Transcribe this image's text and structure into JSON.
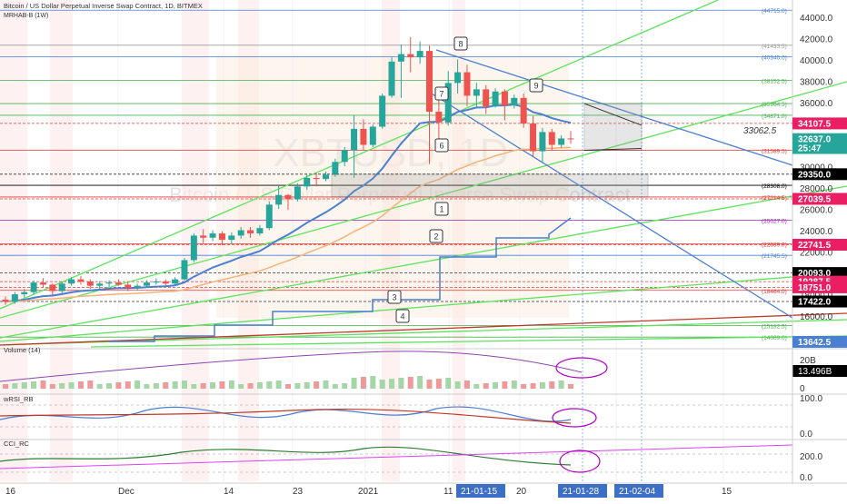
{
  "header": {
    "title": "Bitcoin / US Dollar Perpetual Inverse Swap Contract, 1D, BITMEX",
    "indicator": "MRHAB-B (1W)"
  },
  "watermark": {
    "symbol": "XBTUSD, 1D",
    "description": "Bitcoin / US Dollar Perpetual Inverse Swap Contract"
  },
  "price_axis": {
    "ticks": [
      {
        "label": "44000.0",
        "v": 44000
      },
      {
        "label": "42000.0",
        "v": 42000
      },
      {
        "label": "40000.0",
        "v": 40000
      },
      {
        "label": "38000.0",
        "v": 38000
      },
      {
        "label": "36000.0",
        "v": 36000
      },
      {
        "label": "34000.0",
        "v": 34000
      },
      {
        "label": "32000.0",
        "v": 32000
      },
      {
        "label": "30000.0",
        "v": 30000
      },
      {
        "label": "28000.0",
        "v": 28000
      },
      {
        "label": "26000.0",
        "v": 26000
      },
      {
        "label": "24000.0",
        "v": 24000
      },
      {
        "label": "22000.0",
        "v": 22000
      },
      {
        "label": "20000.0",
        "v": 20000
      },
      {
        "label": "18000.0",
        "v": 18000
      },
      {
        "label": "16000.0",
        "v": 16000
      }
    ],
    "badges": [
      {
        "label": "34107.5",
        "v": 34107.5,
        "color": "#e91e63"
      },
      {
        "label": "32637.0",
        "v": 32637.0,
        "color": "#26a69a"
      },
      {
        "label": "25:47",
        "v": 31800,
        "color": "#26a69a"
      },
      {
        "label": "29350.0",
        "v": 29350.0,
        "color": "#000000"
      },
      {
        "label": "27039.5",
        "v": 27039.5,
        "color": "#e91e63"
      },
      {
        "label": "22741.5",
        "v": 22741.5,
        "color": "#e91e63"
      },
      {
        "label": "20093.0",
        "v": 20093.0,
        "color": "#000000"
      },
      {
        "label": "19287.5",
        "v": 19287.5,
        "color": "#e91e63"
      },
      {
        "label": "18751.0",
        "v": 18751.0,
        "color": "#e91e63"
      },
      {
        "label": "17422.0",
        "v": 17422.0,
        "color": "#000000"
      },
      {
        "label": "13642.5",
        "v": 13642.5,
        "color": "#4a7fd1"
      }
    ]
  },
  "level_labels": [
    {
      "label": "(44715.0)",
      "v": 44715.0
    },
    {
      "label": "(41433.5)",
      "v": 41433.5
    },
    {
      "label": "(40340.0)",
      "v": 40340.0
    },
    {
      "label": "(38152.5)",
      "v": 38152.5
    },
    {
      "label": "(35964.5)",
      "v": 35964.5
    },
    {
      "label": "(34871.0)",
      "v": 34871.0
    },
    {
      "label": "(31589.5)",
      "v": 31589.5
    },
    {
      "label": "(28308.0)",
      "v": 28308.0
    },
    {
      "label": "(27214.5)",
      "v": 27214.5
    },
    {
      "label": "(25027.0)",
      "v": 25027.0
    },
    {
      "label": "(22839.0)",
      "v": 22839.0
    },
    {
      "label": "(21745.5)",
      "v": 21745.5
    },
    {
      "label": "(18464.0)",
      "v": 18464.0
    },
    {
      "label": "(15182.5)",
      "v": 15182.5
    },
    {
      "label": "(14089.0)",
      "v": 14089.0
    }
  ],
  "annotation_price": "33062.5",
  "wave_labels": [
    "1",
    "2",
    "3",
    "4",
    "6",
    "7",
    "8",
    "9"
  ],
  "volume_pane": {
    "title": "Volume (14)",
    "ticks": [
      "20B",
      "0"
    ],
    "badge": "13.496B"
  },
  "wrsi_pane": {
    "title": "wRSI_RB",
    "ticks": [
      "100.0",
      "0.0"
    ]
  },
  "cci_pane": {
    "title": "CCI_RC",
    "ticks": [
      "200.0",
      "0.0"
    ]
  },
  "time_axis": {
    "ticks": [
      "16",
      "Dec",
      "14",
      "23",
      "2021",
      "11",
      "20",
      "15"
    ],
    "highlights": [
      "21-01-15",
      "21-01-28",
      "21-02-04"
    ]
  },
  "chart_data": {
    "type": "candlestick",
    "y_range": [
      13000,
      45500
    ],
    "ohlc": [
      [
        17600,
        17900,
        17100,
        17400
      ],
      [
        17400,
        18300,
        17200,
        18100
      ],
      [
        18100,
        18600,
        17800,
        18300
      ],
      [
        18300,
        19400,
        18100,
        19200
      ],
      [
        19200,
        19600,
        18700,
        19000
      ],
      [
        19000,
        19100,
        18000,
        18400
      ],
      [
        18400,
        19300,
        18200,
        19100
      ],
      [
        19100,
        19700,
        18900,
        19500
      ],
      [
        19500,
        19800,
        19000,
        19300
      ],
      [
        19300,
        19500,
        18600,
        18900
      ],
      [
        18900,
        19300,
        18500,
        19100
      ],
      [
        19100,
        19400,
        18800,
        19200
      ],
      [
        19200,
        19500,
        18900,
        19000
      ],
      [
        19000,
        19300,
        18400,
        18700
      ],
      [
        18700,
        19100,
        18500,
        18900
      ],
      [
        18900,
        19400,
        18700,
        19200
      ],
      [
        19200,
        19600,
        19000,
        19300
      ],
      [
        19300,
        19500,
        18900,
        19100
      ],
      [
        19100,
        19700,
        19000,
        19500
      ],
      [
        19500,
        21500,
        19400,
        21300
      ],
      [
        21300,
        23800,
        21100,
        23600
      ],
      [
        23600,
        24200,
        22900,
        23400
      ],
      [
        23400,
        24100,
        23100,
        23800
      ],
      [
        23800,
        24000,
        22700,
        23200
      ],
      [
        23200,
        23900,
        22800,
        23600
      ],
      [
        23600,
        24400,
        23300,
        24100
      ],
      [
        24100,
        24400,
        23400,
        23800
      ],
      [
        23800,
        24600,
        23600,
        24300
      ],
      [
        24300,
        26800,
        24100,
        26500
      ],
      [
        26500,
        28300,
        26100,
        27400
      ],
      [
        27400,
        27500,
        26000,
        27000
      ],
      [
        27000,
        28500,
        26800,
        28200
      ],
      [
        28200,
        29300,
        27900,
        29000
      ],
      [
        29000,
        29500,
        28200,
        28900
      ],
      [
        28900,
        29600,
        28700,
        29300
      ],
      [
        29300,
        30800,
        29100,
        30500
      ],
      [
        30500,
        31900,
        30100,
        31600
      ],
      [
        31600,
        34900,
        29000,
        33600
      ],
      [
        33600,
        34500,
        31600,
        32100
      ],
      [
        32100,
        34000,
        31900,
        33800
      ],
      [
        33800,
        36900,
        33600,
        36700
      ],
      [
        36700,
        40300,
        36500,
        39900
      ],
      [
        39900,
        41500,
        36500,
        40600
      ],
      [
        40600,
        42200,
        38900,
        40300
      ],
      [
        40300,
        41800,
        39700,
        40900
      ],
      [
        40900,
        41400,
        30300,
        35200
      ],
      [
        35200,
        36800,
        32300,
        34200
      ],
      [
        34200,
        39000,
        33900,
        37900
      ],
      [
        37900,
        40100,
        36900,
        38900
      ],
      [
        38900,
        39600,
        35700,
        36700
      ],
      [
        36700,
        37900,
        35600,
        37300
      ],
      [
        37300,
        37700,
        35000,
        35700
      ],
      [
        35700,
        37400,
        35600,
        37100
      ],
      [
        37100,
        37300,
        34400,
        35800
      ],
      [
        35800,
        36800,
        35500,
        36500
      ],
      [
        36500,
        36900,
        33700,
        34100
      ],
      [
        34100,
        34800,
        31000,
        31500
      ],
      [
        31500,
        33700,
        30500,
        33300
      ],
      [
        33300,
        33600,
        31600,
        32100
      ],
      [
        32100,
        33000,
        31800,
        32700
      ],
      [
        32700,
        33400,
        32200,
        32637
      ]
    ],
    "lines": {
      "green_trend": [
        [
          0,
          15000
        ],
        [
          60,
          35500
        ]
      ],
      "blue_descending": [
        [
          24,
          41500
        ],
        [
          63,
          29800
        ]
      ]
    }
  }
}
